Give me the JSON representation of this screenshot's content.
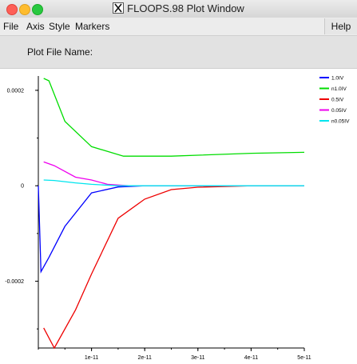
{
  "window": {
    "title": "FLOOPS.98 Plot Window"
  },
  "menu": {
    "items": [
      "File",
      "Axis",
      "Style",
      "Markers"
    ],
    "help": "Help"
  },
  "plot_file": {
    "label": "Plot File Name:",
    "value": ""
  },
  "chart_data": {
    "type": "line",
    "xlim": [
      0,
      5e-11
    ],
    "ylim": [
      -0.00034,
      0.00023
    ],
    "x_ticks": [
      {
        "value": 1e-11,
        "label": "1e-11"
      },
      {
        "value": 2e-11,
        "label": "2e-11"
      },
      {
        "value": 3e-11,
        "label": "3e-11"
      },
      {
        "value": 4e-11,
        "label": "4e-11"
      },
      {
        "value": 5e-11,
        "label": "5e-11"
      }
    ],
    "y_ticks": [
      {
        "value": 0.0002,
        "label": "0.0002"
      },
      {
        "value": 0,
        "label": "0"
      },
      {
        "value": -0.0002,
        "label": "-0.0002"
      }
    ],
    "legend_position": "top-right",
    "series": [
      {
        "name": "1.0IV",
        "color": "#0000ff",
        "points": [
          [
            0,
            0
          ],
          [
            5e-13,
            -0.00018
          ],
          [
            2e-12,
            -0.00015
          ],
          [
            5e-12,
            -8.5e-05
          ],
          [
            1e-11,
            -1.5e-05
          ],
          [
            1.5e-11,
            -2.5e-06
          ],
          [
            2e-11,
            0
          ],
          [
            3e-11,
            0
          ],
          [
            4e-11,
            0
          ],
          [
            5e-11,
            0
          ]
        ]
      },
      {
        "name": "n1.0IV",
        "color": "#00dd00",
        "points": [
          [
            1e-12,
            0.000225
          ],
          [
            2e-12,
            0.00022
          ],
          [
            5e-12,
            0.000135
          ],
          [
            1e-11,
            8.2e-05
          ],
          [
            1.6e-11,
            6.2e-05
          ],
          [
            2e-11,
            6.2e-05
          ],
          [
            2.5e-11,
            6.2e-05
          ],
          [
            3e-11,
            6.4e-05
          ],
          [
            4e-11,
            6.8e-05
          ],
          [
            5e-11,
            7e-05
          ]
        ]
      },
      {
        "name": "0.5IV",
        "color": "#ee0000",
        "points": [
          [
            1e-12,
            -0.000298
          ],
          [
            3e-12,
            -0.00034
          ],
          [
            7e-12,
            -0.00026
          ],
          [
            1e-11,
            -0.000185
          ],
          [
            1.5e-11,
            -6.8e-05
          ],
          [
            2e-11,
            -2.8e-05
          ],
          [
            2.5e-11,
            -8e-06
          ],
          [
            3e-11,
            -3e-06
          ],
          [
            4e-11,
            0
          ],
          [
            5e-11,
            0
          ]
        ]
      },
      {
        "name": "0.05IV",
        "color": "#ee00ee",
        "points": [
          [
            1e-12,
            5e-05
          ],
          [
            3e-12,
            4.2e-05
          ],
          [
            7e-12,
            1.8e-05
          ],
          [
            1e-11,
            1.2e-05
          ],
          [
            1.3e-11,
            3e-06
          ],
          [
            1.7e-11,
            0
          ],
          [
            2.5e-11,
            0
          ],
          [
            5e-11,
            0
          ]
        ]
      },
      {
        "name": "n0.05IV",
        "color": "#00e5ee",
        "points": [
          [
            1e-12,
            1.2e-05
          ],
          [
            3e-12,
            1.1e-05
          ],
          [
            7e-12,
            6e-06
          ],
          [
            1e-11,
            3e-06
          ],
          [
            1.5e-11,
            0
          ],
          [
            2.5e-11,
            0
          ],
          [
            5e-11,
            0
          ]
        ]
      }
    ]
  }
}
